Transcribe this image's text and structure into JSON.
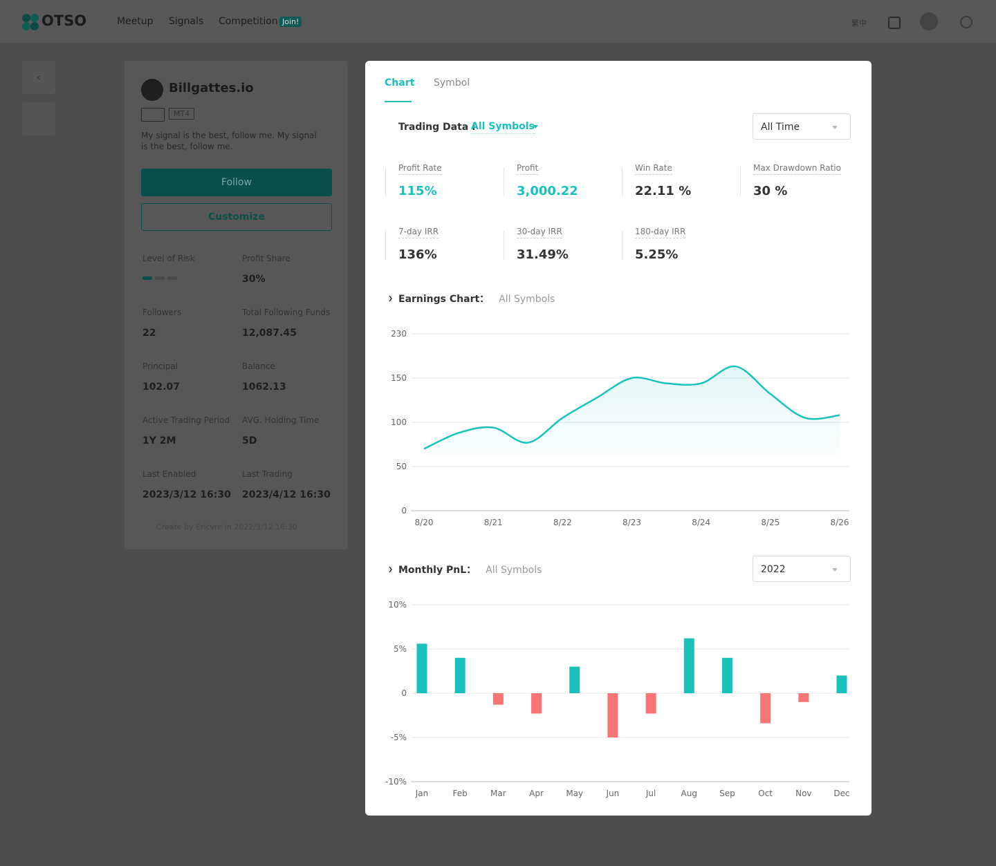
{
  "header": {
    "logo": "OTSO",
    "nav": [
      "Meetup",
      "Signals",
      "Competition"
    ],
    "badge": "Join!",
    "language": "繁中"
  },
  "signal_card": {
    "name": "Billgattes.io",
    "platform": "MT4",
    "description": "My signal is the best, follow me. My signal is the best, follow me.",
    "follow": "Follow",
    "customize": "Customize",
    "stats": [
      {
        "label": "Level of Risk"
      },
      {
        "label": "Profit Share",
        "value": "30%"
      },
      {
        "label": "Followers",
        "value": "22"
      },
      {
        "label": "Total Following Funds",
        "value": "12,087.45"
      },
      {
        "label": "Principal",
        "value": "102.07"
      },
      {
        "label": "Balance",
        "value": "1062.13"
      },
      {
        "label": "Active Trading Period",
        "value": "1Y 2M"
      },
      {
        "label": "AVG. Holding Time",
        "value": "5D"
      },
      {
        "label": "Last Enabled",
        "value": "2023/3/12 16:30"
      },
      {
        "label": "Last Trading",
        "value": "2023/4/12 16:30"
      }
    ],
    "footer": "Create by Ericvre in 2022/3/12 16:30"
  },
  "modal": {
    "tabs": [
      "Chart",
      "Symbol"
    ],
    "trading_data": {
      "title": "Trading Data :",
      "filter": "All Symbols",
      "period": "All Time",
      "metrics": [
        {
          "label": "Profit Rate",
          "value": "115%"
        },
        {
          "label": "Profit",
          "value": "3,000.22"
        },
        {
          "label": "Win Rate",
          "value": "22.11 %"
        },
        {
          "label": "Max Drawdown Ratio",
          "value": "30 %"
        },
        {
          "label": "7-day IRR",
          "value": "136%"
        },
        {
          "label": "30-day IRR",
          "value": "31.49%"
        },
        {
          "label": "180-day IRR",
          "value": "5.25%"
        }
      ]
    }
  },
  "chart_data": [
    {
      "type": "line",
      "title": "Earnings Chart：",
      "subtitle": "All Symbols",
      "categories": [
        "8/20",
        null,
        "8/21",
        null,
        "8/22",
        null,
        "8/23",
        null,
        "8/24",
        null,
        "8/25",
        null,
        "8/26"
      ],
      "series": [
        {
          "color": "#19c1bc",
          "values": [
            70,
            88,
            94,
            77,
            105,
            128,
            150,
            144,
            144,
            171,
            132,
            105,
            108
          ]
        }
      ],
      "ylim": [
        0,
        230
      ],
      "yticks": [
        0,
        50,
        100,
        150,
        230
      ],
      "grid": true
    },
    {
      "type": "bar",
      "title": "Monthly PnL：",
      "subtitle": "All Symbols",
      "year": "2022",
      "categories": [
        "Jan",
        "Feb",
        "Mar",
        "Apr",
        "May",
        "Jun",
        "Jul",
        "Aug",
        "Sep",
        "Oct",
        "Nov",
        "Dec"
      ],
      "values": [
        5.6,
        4.0,
        -1.3,
        -2.3,
        3.0,
        -5.0,
        -2.3,
        6.2,
        4.0,
        -3.4,
        -1.0,
        2.0
      ],
      "positive_color": "#19c1bc",
      "negative_color": "#f87575",
      "ylim": [
        -10,
        10
      ],
      "yticks": [
        {
          "value": -10,
          "label": "-10%"
        },
        {
          "value": -5,
          "label": "-5%"
        },
        0,
        {
          "value": 5,
          "label": "5%"
        },
        {
          "value": 10,
          "label": "10%"
        }
      ],
      "grid": true
    }
  ]
}
